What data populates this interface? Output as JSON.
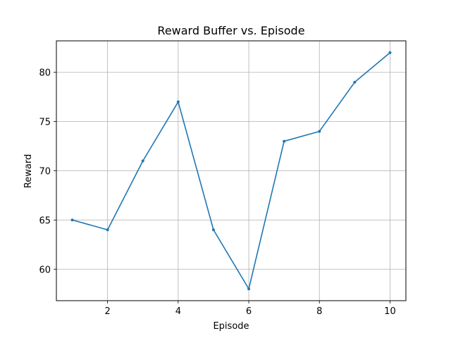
{
  "chart_data": {
    "type": "line",
    "title": "Reward Buffer vs. Episode",
    "xlabel": "Episode",
    "ylabel": "Reward",
    "x": [
      1,
      2,
      3,
      4,
      5,
      6,
      7,
      8,
      9,
      10
    ],
    "series": [
      {
        "values": [
          65,
          64,
          71,
          77,
          64,
          58,
          73,
          74,
          79,
          82
        ],
        "color": "#1f77b4"
      }
    ],
    "xlim": [
      0.55,
      10.45
    ],
    "ylim": [
      56.8,
      83.2
    ],
    "xticks": [
      2,
      4,
      6,
      8,
      10
    ],
    "yticks": [
      60,
      65,
      70,
      75,
      80
    ],
    "grid": true,
    "legend": "none",
    "colors": {
      "grid": "#b0b0b0",
      "axes": "#000000",
      "line": "#1f77b4"
    }
  }
}
